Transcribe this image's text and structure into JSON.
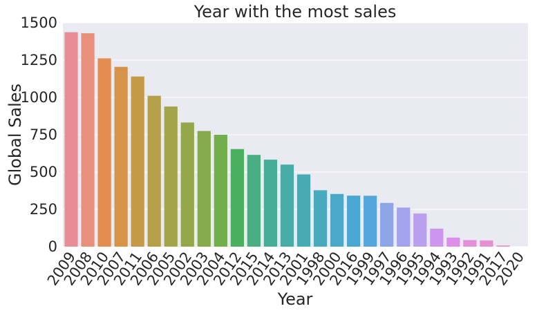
{
  "chart_data": {
    "type": "bar",
    "title": "Year with the most sales",
    "xlabel": "Year",
    "ylabel": "Global Sales",
    "ylim": [
      0,
      1500
    ],
    "yticks": [
      0,
      250,
      500,
      750,
      1000,
      1250,
      1500
    ],
    "grid": true,
    "categories": [
      "2009",
      "2008",
      "2010",
      "2007",
      "2011",
      "2006",
      "2005",
      "2002",
      "2003",
      "2004",
      "2012",
      "2015",
      "2014",
      "2013",
      "2001",
      "1998",
      "2000",
      "2016",
      "1999",
      "1997",
      "1996",
      "1995",
      "1994",
      "1993",
      "1992",
      "1991",
      "2017",
      "2020"
    ],
    "values": [
      1437,
      1430,
      1262,
      1205,
      1140,
      1011,
      939,
      832,
      775,
      750,
      654,
      615,
      583,
      550,
      484,
      378,
      353,
      342,
      341,
      293,
      262,
      222,
      121,
      61,
      44,
      42,
      8,
      0
    ],
    "colors": [
      "#e98d94",
      "#e8907c",
      "#e38e50",
      "#d5944a",
      "#c49a49",
      "#b3a049",
      "#a3a54a",
      "#94a84b",
      "#85ab4c",
      "#72ae4b",
      "#4aaf5f",
      "#4aae82",
      "#48ad97",
      "#48aca6",
      "#47abb3",
      "#49aabd",
      "#4aa9c8",
      "#4aa7d3",
      "#55a6db",
      "#8ba5e6",
      "#a3a3ed",
      "#b8a0ee",
      "#cd95ee",
      "#dd8ee6",
      "#e48ddb",
      "#e790cf",
      "#ea91c4",
      "#ea92b3"
    ]
  }
}
